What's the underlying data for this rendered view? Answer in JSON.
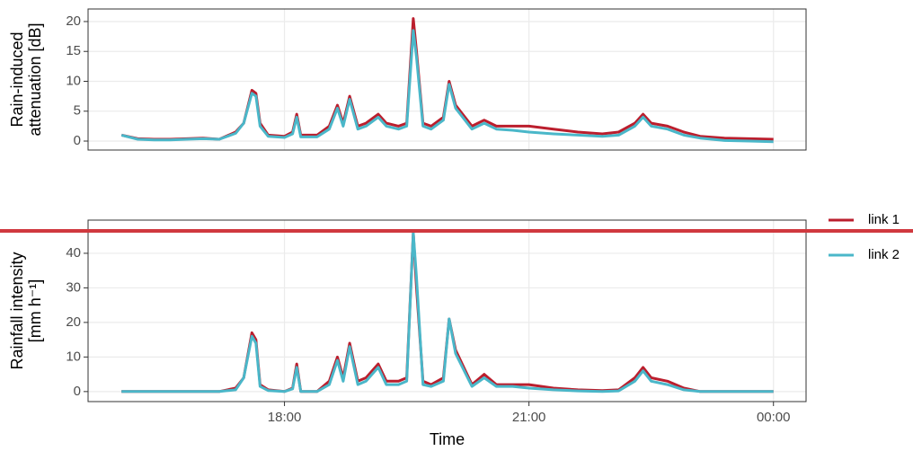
{
  "chart_data": [
    {
      "type": "line",
      "y_label": [
        "Rain-induced",
        "attenuation [dB]"
      ],
      "x": [
        16.0,
        16.2,
        16.4,
        16.6,
        16.8,
        17.0,
        17.2,
        17.4,
        17.5,
        17.6,
        17.65,
        17.7,
        17.8,
        18.0,
        18.1,
        18.15,
        18.2,
        18.4,
        18.55,
        18.65,
        18.72,
        18.8,
        18.9,
        19.0,
        19.15,
        19.25,
        19.4,
        19.5,
        19.58,
        19.62,
        19.7,
        19.8,
        19.95,
        20.02,
        20.1,
        20.3,
        20.45,
        20.6,
        20.8,
        21.0,
        21.3,
        21.6,
        21.9,
        22.1,
        22.3,
        22.4,
        22.5,
        22.7,
        22.9,
        23.1,
        23.4,
        23.7,
        24.0
      ],
      "series": [
        {
          "color": "#bb1e2d",
          "values": [
            1,
            0.4,
            0.3,
            0.3,
            0.4,
            0.5,
            0.3,
            1.5,
            3,
            8.5,
            8,
            3,
            1,
            0.8,
            1.5,
            4.5,
            1,
            1,
            2.5,
            6,
            3,
            7.5,
            2.5,
            3,
            4.5,
            3,
            2.5,
            3,
            20.5,
            15,
            3,
            2.5,
            4,
            10,
            6,
            2.5,
            3.5,
            2.5,
            2.5,
            2.5,
            2,
            1.5,
            1.2,
            1.5,
            3,
            4.5,
            3,
            2.5,
            1.5,
            0.8,
            0.5,
            0.4,
            0.3
          ]
        },
        {
          "color": "#4ab7c9",
          "values": [
            1,
            0.3,
            0.2,
            0.2,
            0.3,
            0.4,
            0.3,
            1.3,
            3,
            8,
            7.5,
            2.5,
            0.8,
            0.6,
            1.2,
            4,
            0.7,
            0.7,
            2,
            5.5,
            2.5,
            7,
            2,
            2.5,
            4,
            2.5,
            2,
            2.5,
            18.5,
            14,
            2.5,
            2,
            3.5,
            9.5,
            5.5,
            2,
            3,
            2,
            1.8,
            1.5,
            1.2,
            1,
            0.8,
            1,
            2.5,
            4,
            2.5,
            2,
            1,
            0.5,
            0.1,
            0,
            -0.1
          ]
        }
      ],
      "xlim": [
        15.59,
        24.4
      ],
      "xticks": [
        18,
        21,
        24
      ],
      "ylim": [
        -1.5,
        22.1
      ],
      "yticks": [
        0,
        5,
        10,
        15,
        20
      ],
      "grid": true
    },
    {
      "type": "line",
      "y_label": [
        "Rainfall intensity",
        "[mm h⁻¹]"
      ],
      "x_label": "Time",
      "x": [
        16.0,
        16.2,
        16.4,
        16.6,
        16.8,
        17.0,
        17.2,
        17.4,
        17.5,
        17.6,
        17.65,
        17.7,
        17.8,
        18.0,
        18.1,
        18.15,
        18.2,
        18.4,
        18.55,
        18.65,
        18.72,
        18.8,
        18.9,
        19.0,
        19.15,
        19.25,
        19.4,
        19.5,
        19.58,
        19.62,
        19.7,
        19.8,
        19.95,
        20.02,
        20.1,
        20.3,
        20.45,
        20.6,
        20.8,
        21.0,
        21.3,
        21.6,
        21.9,
        22.1,
        22.3,
        22.4,
        22.5,
        22.7,
        22.9,
        23.1,
        23.4,
        23.7,
        24.0
      ],
      "series": [
        {
          "name": "link 1",
          "color": "#bb1e2d",
          "values": [
            0,
            0,
            0,
            0,
            0,
            0,
            0,
            1,
            4,
            17,
            15,
            2,
            0.5,
            0,
            1,
            8,
            0,
            0,
            3,
            10,
            4,
            14,
            3,
            4,
            8,
            3,
            3,
            4,
            46,
            30,
            3,
            2,
            4,
            21,
            12,
            2,
            5,
            2,
            2,
            2,
            1,
            0.5,
            0.3,
            0.5,
            4,
            7,
            4,
            3,
            1,
            0,
            0,
            0,
            0
          ]
        },
        {
          "name": "link 2",
          "color": "#4ab7c9",
          "values": [
            0,
            0,
            0,
            0,
            0,
            0,
            0,
            0.5,
            4,
            16,
            14,
            1.5,
            0.3,
            0,
            0.8,
            7,
            0,
            0,
            2,
            9,
            3,
            13,
            2,
            3,
            7,
            2,
            2,
            3,
            46,
            33,
            2,
            1.5,
            3,
            21,
            11,
            1.5,
            4,
            1.5,
            1.5,
            1,
            0.5,
            0.2,
            0,
            0.2,
            3,
            6,
            3,
            2,
            0.5,
            0,
            0,
            0,
            0
          ]
        }
      ],
      "xlim": [
        15.59,
        24.4
      ],
      "xticks": [
        {
          "value": 18,
          "label": "18:00"
        },
        {
          "value": 21,
          "label": "21:00"
        },
        {
          "value": 24,
          "label": "00:00"
        }
      ],
      "ylim": [
        -2.9,
        49.6
      ],
      "yticks": [
        0,
        10,
        20,
        30,
        40
      ],
      "grid": true,
      "legend": "right"
    }
  ]
}
